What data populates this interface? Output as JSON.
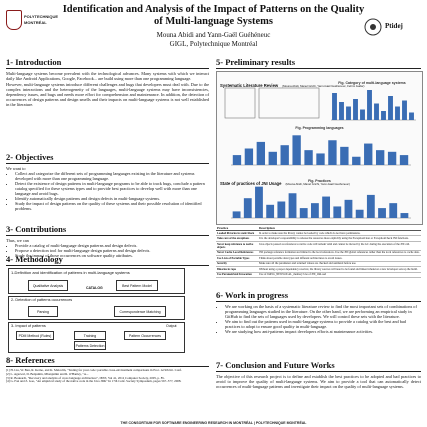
{
  "header": {
    "title": "Identification and Analysis of the Impact of Patterns on the Quality of Multi-language Systems",
    "authors": "Mouna Abidi and Yann-Gaël Guéhéneuc",
    "affiliation": "GIGL, Polytechnique Montréal",
    "left_logo_lines": [
      "POLYTECHNIQUE",
      "MONTRÉAL"
    ],
    "right_logo_text": "Ptidej"
  },
  "introduction": {
    "title": "1- Introduction",
    "para1": "Multi-language systems become prevalent with the technological advances. Many systems with which we interact daily like Android Applications, Google, Facebook... are build using more than one programming language.",
    "para2": "However, multi-language systems introduce different challenges and bugs that developers must deal with. Due to the complex interactions and the heterogeneity of the languages, multi-language systems may have inconsistencies, dependency issues, and bugs and needs more effort for comprehension and maintenance. In addition, the detection of occurrences of design patterns and design smells and their impacts on multi-language systems is not well established in the literature."
  },
  "objectives": {
    "title": "2- Objectives",
    "intro": "We want to",
    "items": [
      "Collect and categorize the different sets of programming languages existing in the literature and systems developed with more than one programming language.",
      "Detect the existence of design patterns in multi-language programs to be able to track bugs, conclude a pattern catalog specified for these systems types and to provide best practices to develop well with more than one language and avoid bugs.",
      "Identify automatically design patterns and design defects in multi-language systems.",
      "Study the impact of design patterns on the quality of these systems and their possible resolution of identified problems."
    ]
  },
  "contributions": {
    "title": "3- Contributions",
    "intro": "Thus, we can",
    "items": [
      "Provide a catalog of multi-language design patterns and design defects.",
      "Propose a detection tool for multi-language design patterns and design defects.",
      "Study the impact of those occurrences on software quality attributes."
    ]
  },
  "methodology": {
    "title": "4- Methodology",
    "step1": "1-Definition and identification of patterns in multi-language systems",
    "step1_boxes": [
      "Qualitative Analysis",
      "Best Pattern Model"
    ],
    "step1_mid": "CATALOG",
    "step2": "2- Detection of patterns occurrences",
    "step2_boxes": [
      "Parsing",
      "Correspondence Matching"
    ],
    "step3": "3- Impact of patterns",
    "step3_boxes": [
      "PDM Method (Rules)",
      "Training",
      "Pattern Occurrences",
      "Patterns Detection"
    ],
    "step3_side": "Output"
  },
  "references": {
    "title": "8- References",
    "items": [
      "[1] H. Liu, W. Ben, R. Kerno, and K. Malcolm, \"Testing for your code: portable cross-environment comparisons in Proc. At 9th Int. Conf.",
      "[2] L. Agarwal, D. Benjamin, Mbenjamin and R. O'Hanley, \"A...",
      "[3] R. Bouuardi, \"Recovery and analysis of cross language architecture\", IEEE, Vol 41, 2012 Computer Society, 2005, p. 85.",
      "[4] G. Fan and Z. Gao, \"An empirical study of the native code in the Java JDK\" In 17th Conf. Society Symposium, pages 567–577, 2008."
    ]
  },
  "results": {
    "title": "5- Preliminary results",
    "slr_title": "Systematic Literature Review",
    "slr_authors": "(Mouna Abidi, Manel Grichi, Yann-Gaël Guéhéneuc, Fehmi Jaafar)",
    "chart1_caption": "Fig. Category of multi-language systems",
    "chart2_caption": "Fig. Programming languages",
    "jni_title": "State of practices of JNI Usage",
    "jni_authors": "(Mouna Abidi, Manel Grichi, Yann-Gaël Guéhéneuc)",
    "chart3_caption": "Fig. Practices",
    "table_headers": [
      "Practice",
      "Description"
    ],
    "table_rows": [
      [
        "Loaded libraries in static block",
        "In order to make sure the library cannot be loaded by code which do not have permissions."
      ],
      [
        "Take care of the exceptions",
        "It is the developer's responsibility to release the resources more explicitly using the ExceptionClear or ExceptionCheck JNI functions."
      ],
      [
        "Never keep reference to native objects",
        "Java objects passed as references to native code will remain valid and cannot be moved by the GC during the execution of the JNI call."
      ],
      [
        "Never Cache Local References",
        "JNI package reference formation are limited to the local references. Use the JNI global references rather than the local references to cache data."
      ],
      [
        "Use Lists of Portable Types",
        "Think about portable data types and different architectures to avoid issues."
      ],
      [
        "Security",
        "Make sure all the parameters and returned values are checked and sanitized before use."
      ],
      [
        "Binaries in repo",
        "Without using a proper dependency resolver, the library sources will need to be found and linked whenever a new developer sets up the build."
      ],
      [
        "Use Parametrized Invocation",
        "Use of JniEnv_NEWLOCAL_memory Use of JNI_OnLoad"
      ]
    ]
  },
  "work": {
    "title": "6- Work in progress",
    "items": [
      "We are working on the basis of a systematic literature review to find the most important sets of combinations of programming languages studied in the literature. On the other hand, we are performing an empirical study in GitHub to find the sets of languages used by developers. We will control these sets with the literature.",
      "We aim to find out the patterns used in multi-language systems to provide a catalog with the best and bad practices to adopt to ensure good quality in multi-language.",
      "We are studying how anti-patterns impact developers efforts at maintenance activities."
    ]
  },
  "conclusion": {
    "title": "7- Conclusion and Future Works",
    "text": "The objective of this research project is to define and establish the best practices to be adopted and bad practices to avoid to improve the quality of multi-language systems. We aim to provide a tool that can automatically detect occurrences of multi-language patterns and investigate their impact on the quality of multi-language systems."
  },
  "footer": {
    "text": "THE CONSORTIUM FOR SOFTWARE ENGINEERING RESEARCH IN MONTRÉAL | POLYTECHNIQUE MONTRÉAL"
  },
  "chart_data": [
    {
      "type": "bar",
      "title": "",
      "categories": [
        "",
        "",
        "",
        "",
        "",
        "",
        "",
        "",
        "",
        "",
        "",
        ""
      ],
      "values": [
        18,
        12,
        9,
        14,
        7,
        20,
        11,
        6,
        16,
        9,
        13,
        5
      ],
      "ylim": [
        0,
        22
      ]
    },
    {
      "type": "bar",
      "title": "",
      "categories": [
        "",
        "",
        "",
        "",
        "",
        "",
        "",
        "",
        "",
        "",
        "",
        "",
        "",
        "",
        ""
      ],
      "values": [
        6,
        10,
        14,
        8,
        12,
        18,
        9,
        7,
        15,
        11,
        5,
        13,
        9,
        8,
        6
      ],
      "ylim": [
        0,
        20
      ]
    },
    {
      "type": "bar",
      "title": "",
      "categories": [
        "",
        "",
        "",
        "",
        "",
        "",
        "",
        "",
        "",
        "",
        "",
        "",
        "",
        "",
        "",
        ""
      ],
      "values": [
        4,
        12,
        19,
        8,
        10,
        15,
        6,
        9,
        13,
        7,
        11,
        5,
        14,
        6,
        9,
        3
      ],
      "ylim": [
        0,
        20
      ]
    }
  ],
  "colors": {
    "bar1": "#3a6db4",
    "bar2": "#3a6db4",
    "bar3": "#3a6db4",
    "accent": "#8a1b1b"
  }
}
